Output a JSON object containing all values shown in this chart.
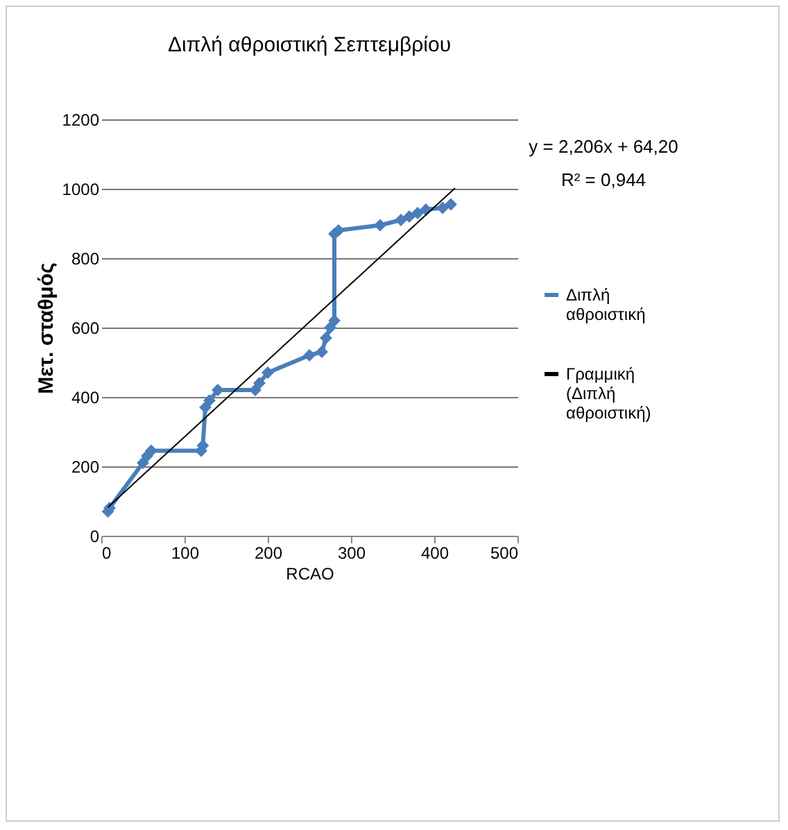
{
  "chart_data": {
    "type": "line",
    "title": "Διπλή αθροιστική Σεπτεμβρίου",
    "xlabel": "RCAO",
    "ylabel": "Μετ. σταθμός",
    "annotations": [
      "y = 2,206x + 64,20",
      "R² = 0,944"
    ],
    "series": [
      {
        "name": "Διπλή αθροιστική",
        "color": "#4a7ebb",
        "marker": "diamond",
        "x": [
          8,
          10,
          50,
          55,
          60,
          120,
          122,
          125,
          130,
          140,
          185,
          190,
          200,
          250,
          265,
          270,
          275,
          280,
          280,
          285,
          335,
          360,
          370,
          380,
          390,
          410,
          420
        ],
        "values": [
          70,
          80,
          210,
          230,
          245,
          245,
          260,
          370,
          390,
          420,
          420,
          440,
          470,
          520,
          530,
          570,
          600,
          620,
          870,
          880,
          895,
          910,
          920,
          930,
          940,
          945,
          955
        ]
      },
      {
        "name": "Γραμμική (Διπλή αθροιστική)",
        "color": "#000000",
        "marker": "none",
        "x": [
          8,
          425
        ],
        "values": [
          82,
          1002
        ]
      }
    ],
    "xlim": [
      0,
      500
    ],
    "xticks": [
      0,
      100,
      200,
      300,
      400,
      500
    ],
    "ylim": [
      0,
      1200
    ],
    "yticks": [
      0,
      200,
      400,
      600,
      800,
      1000,
      1200
    ],
    "grid": "y",
    "legend": "right"
  }
}
